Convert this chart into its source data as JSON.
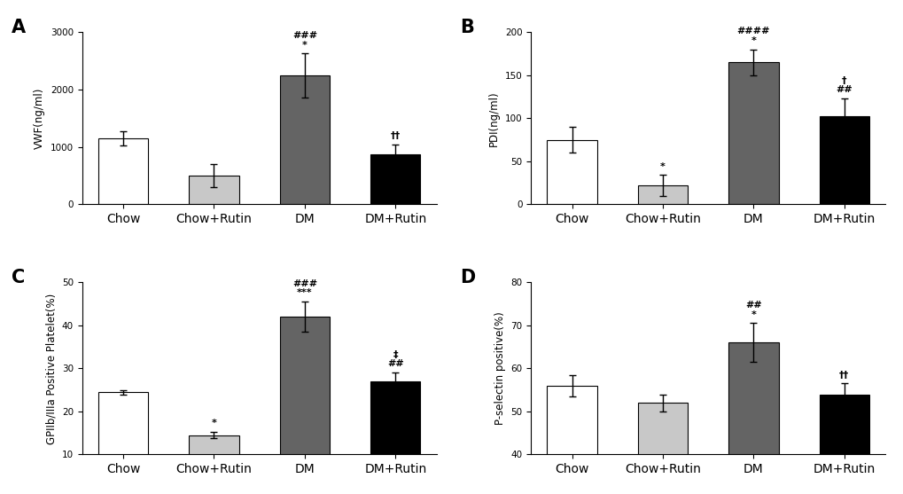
{
  "panels": [
    {
      "label": "A",
      "ylabel": "VWF(ng/ml)",
      "ylim": [
        0,
        3000
      ],
      "yticks": [
        0,
        1000,
        2000,
        3000
      ],
      "categories": [
        "Chow",
        "Chow+Rutin",
        "DM",
        "DM+Rutin"
      ],
      "values": [
        1150,
        500,
        2250,
        870
      ],
      "errors": [
        130,
        200,
        380,
        170
      ],
      "colors": [
        "#ffffff",
        "#c8c8c8",
        "#646464",
        "#000000"
      ],
      "sig_labels": [
        "",
        "",
        "*\n###",
        "††"
      ],
      "sig_fontsize": [
        8,
        8,
        8,
        9
      ]
    },
    {
      "label": "B",
      "ylabel": "PDI(ng/ml)",
      "ylim": [
        0,
        200
      ],
      "yticks": [
        0,
        50,
        100,
        150,
        200
      ],
      "categories": [
        "Chow",
        "Chow+Rutin",
        "DM",
        "DM+Rutin"
      ],
      "values": [
        75,
        22,
        165,
        103
      ],
      "errors": [
        15,
        12,
        15,
        20
      ],
      "colors": [
        "#ffffff",
        "#c8c8c8",
        "#646464",
        "#000000"
      ],
      "sig_labels": [
        "",
        "*",
        "*\n####",
        "##\n†"
      ],
      "sig_fontsize": [
        8,
        8,
        8,
        8
      ]
    },
    {
      "label": "C",
      "ylabel": "GPIIb/IIIa Positive Platelet(%)",
      "ylim": [
        10,
        50
      ],
      "yticks": [
        10,
        20,
        30,
        40,
        50
      ],
      "categories": [
        "Chow",
        "Chow+Rutin",
        "DM",
        "DM+Rutin"
      ],
      "values": [
        24.5,
        14.5,
        42.0,
        27.0
      ],
      "errors": [
        0.5,
        0.8,
        3.5,
        2.0
      ],
      "colors": [
        "#ffffff",
        "#c8c8c8",
        "#646464",
        "#000000"
      ],
      "sig_labels": [
        "",
        "*",
        "***\n###",
        "##\n‡"
      ],
      "sig_fontsize": [
        8,
        8,
        8,
        8
      ]
    },
    {
      "label": "D",
      "ylabel": "P-selectin positive(%)",
      "ylim": [
        40,
        80
      ],
      "yticks": [
        40,
        50,
        60,
        70,
        80
      ],
      "categories": [
        "Chow",
        "Chow+Rutin",
        "DM",
        "DM+Rutin"
      ],
      "values": [
        56,
        52,
        66,
        54
      ],
      "errors": [
        2.5,
        2.0,
        4.5,
        2.5
      ],
      "colors": [
        "#ffffff",
        "#c8c8c8",
        "#646464",
        "#000000"
      ],
      "sig_labels": [
        "",
        "",
        "*\n##",
        "††"
      ],
      "sig_fontsize": [
        8,
        8,
        8,
        9
      ]
    }
  ],
  "bar_width": 0.55,
  "edgecolor": "#000000",
  "capsize": 3,
  "background_color": "#ffffff",
  "tick_fontsize": 7.5,
  "sig_fontsize": 8,
  "ylabel_fontsize": 8.5,
  "panel_label_fontsize": 15
}
